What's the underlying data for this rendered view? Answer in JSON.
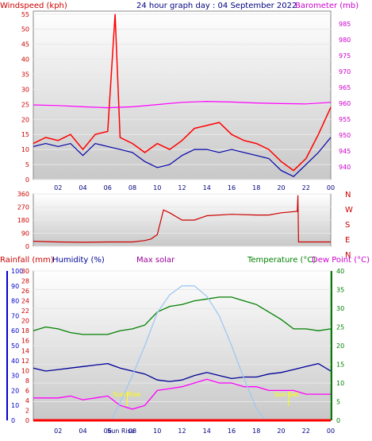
{
  "header": {
    "windspeed_label": "Windspeed (kph)",
    "title": "24 hour graph day : 04 September 2022",
    "barometer_label": "Barometer (mb)"
  },
  "colors": {
    "wind": "#ff0000",
    "gust": "#ff0000",
    "avg_wind": "#0000aa",
    "barometer": "#ff00ff",
    "direction": "#cc0000",
    "temperature": "#008000",
    "dewpoint": "#ff00ff",
    "humidity": "#000099",
    "solar": "#a0c8f0",
    "rainfall": "#ff0000",
    "sun_marker": "#ffff00",
    "panel_bg": "#cfcfcf"
  },
  "x_ticks": [
    "02",
    "04",
    "06",
    "08",
    "10",
    "12",
    "14",
    "16",
    "18",
    "20",
    "22",
    "00"
  ],
  "sun_labels": {
    "rise": "Sun Rise",
    "set": "Sun Set"
  },
  "bottom_axis_extra": "Sun Rise",
  "wind_panel": {
    "y_ticks_left": [
      0,
      5,
      10,
      15,
      20,
      25,
      30,
      35,
      40,
      45,
      50,
      55
    ],
    "y_ticks_right": [
      940,
      945,
      950,
      955,
      960,
      965,
      970,
      975,
      980,
      985
    ],
    "chart_data": {
      "type": "line",
      "x_range_hours": [
        0,
        24
      ],
      "ylim_left": [
        0,
        56
      ],
      "ylim_right": [
        936,
        989
      ],
      "series": [
        {
          "name": "Windspeed (kph)",
          "x": [
            0,
            1,
            2,
            3,
            4,
            5,
            6,
            6.6,
            7,
            8,
            9,
            10,
            11,
            12,
            13,
            14,
            15,
            16,
            17,
            18,
            19,
            20,
            21,
            22,
            23,
            24
          ],
          "values": [
            12,
            14,
            13,
            15,
            10,
            15,
            16,
            55,
            14,
            12,
            9,
            12,
            10,
            13,
            17,
            18,
            19,
            15,
            13,
            12,
            10,
            6,
            3,
            7,
            15,
            24
          ]
        },
        {
          "name": "Average wind",
          "x": [
            0,
            1,
            2,
            3,
            4,
            5,
            6,
            7,
            8,
            9,
            10,
            11,
            12,
            13,
            14,
            15,
            16,
            17,
            18,
            19,
            20,
            21,
            22,
            23,
            24
          ],
          "values": [
            11,
            12,
            11,
            12,
            8,
            12,
            11,
            10,
            9,
            6,
            4,
            5,
            8,
            10,
            10,
            9,
            10,
            9,
            8,
            7,
            3,
            1,
            5,
            9,
            14
          ]
        },
        {
          "name": "Barometer (mb)",
          "x": [
            0,
            2,
            4,
            6,
            8,
            10,
            12,
            14,
            16,
            18,
            20,
            22,
            24
          ],
          "values": [
            959.5,
            959.3,
            958.9,
            958.6,
            958.9,
            959.6,
            960.3,
            960.6,
            960.4,
            960.1,
            959.9,
            959.8,
            960.3
          ]
        }
      ]
    }
  },
  "direction_panel": {
    "y_ticks": [
      0,
      90,
      180,
      270,
      360
    ],
    "compass": [
      "N",
      "W",
      "S",
      "E",
      "N"
    ],
    "chart_data": {
      "type": "line",
      "ylim": [
        0,
        360
      ],
      "series": [
        {
          "name": "Wind direction",
          "x": [
            0,
            2,
            4,
            6,
            8,
            9,
            9.5,
            10,
            10.5,
            11,
            12,
            13,
            14,
            16,
            18,
            19,
            20,
            21.3,
            21.35,
            21.4,
            22,
            24
          ],
          "values": [
            35,
            30,
            28,
            30,
            30,
            40,
            50,
            80,
            250,
            230,
            180,
            180,
            210,
            220,
            215,
            215,
            230,
            240,
            350,
            30,
            30,
            30
          ]
        }
      ]
    }
  },
  "bottom_panel": {
    "labels": {
      "rainfall": "Rainfall (mm)",
      "humidity": "Humidity (%)",
      "max_solar": "Max solar",
      "temperature": "Temperature (°C)",
      "dewpoint": "Dew Point (°C)"
    },
    "y_ticks_humidity": [
      0,
      10,
      20,
      30,
      40,
      50,
      60,
      70,
      80,
      90,
      100
    ],
    "y_ticks_rain": [
      0,
      2,
      4,
      6,
      8,
      10,
      12,
      14,
      16,
      18,
      20,
      22,
      24,
      26,
      28,
      30
    ],
    "y_ticks_temp": [
      0,
      5,
      10,
      15,
      20,
      25,
      30,
      35,
      40
    ],
    "chart_data": {
      "type": "line",
      "ylim_humidity": [
        0,
        100
      ],
      "ylim_temp": [
        0,
        40
      ],
      "series": [
        {
          "name": "Temperature (°C)",
          "x": [
            0,
            1,
            2,
            3,
            4,
            5,
            6,
            7,
            8,
            9,
            10,
            11,
            12,
            13,
            14,
            15,
            16,
            17,
            18,
            19,
            20,
            21,
            22,
            23,
            24
          ],
          "values": [
            24,
            25,
            24.5,
            23.5,
            23,
            23,
            23,
            24,
            24.5,
            25.5,
            29,
            30.5,
            31,
            32,
            32.5,
            33,
            33,
            32,
            31,
            29,
            27,
            24.5,
            24.5,
            24,
            24.5
          ]
        },
        {
          "name": "Dew Point (°C)",
          "x": [
            0,
            1,
            2,
            3,
            4,
            5,
            6,
            7,
            8,
            9,
            10,
            11,
            12,
            13,
            14,
            15,
            16,
            17,
            18,
            19,
            20,
            21,
            22,
            23,
            24
          ],
          "values": [
            6,
            6,
            6,
            6.5,
            5.5,
            6,
            6.5,
            4,
            3,
            4,
            8,
            8.5,
            9,
            10,
            11,
            10,
            10,
            9,
            9,
            8,
            8,
            8,
            7,
            7,
            7
          ]
        },
        {
          "name": "Humidity (%)",
          "x": [
            0,
            1,
            2,
            3,
            4,
            5,
            6,
            7,
            8,
            9,
            10,
            11,
            12,
            13,
            14,
            15,
            16,
            17,
            18,
            19,
            20,
            21,
            22,
            23,
            24
          ],
          "values": [
            35,
            33,
            34,
            35,
            36,
            37,
            38,
            35,
            33,
            31,
            27,
            26,
            27,
            30,
            32,
            30,
            28,
            29,
            29,
            31,
            32,
            34,
            36,
            38,
            33
          ]
        },
        {
          "name": "Max solar",
          "x": [
            6.3,
            7,
            8,
            9,
            10,
            11,
            12,
            13,
            14,
            15,
            16,
            17,
            18,
            18.7
          ],
          "values": [
            0,
            12,
            30,
            50,
            72,
            84,
            90,
            90,
            83,
            70,
            50,
            28,
            8,
            0
          ]
        },
        {
          "name": "Rainfall (mm)",
          "x": [
            0,
            24
          ],
          "values": [
            0,
            0
          ]
        }
      ],
      "sunrise_hour": 6.3,
      "sunset_hour": 20.6
    }
  }
}
